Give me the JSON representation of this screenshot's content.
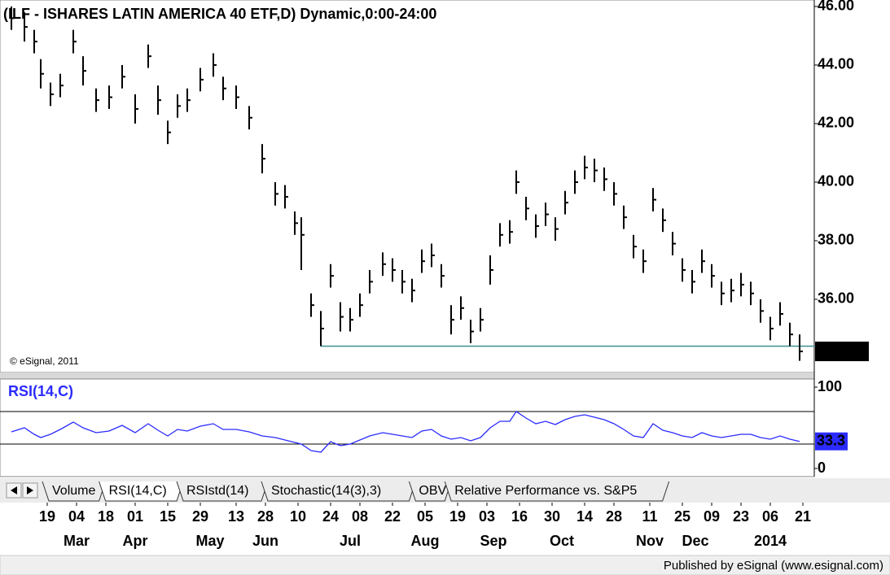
{
  "chart_data": [
    {
      "type": "ohlc",
      "title": "(ILF - ISHARES LATIN AMERICA 40 ETF,D) Dynamic,0:00-24:00",
      "copyright": "© eSignal, 2011",
      "color": "#000000",
      "x": [
        -11,
        -7,
        -4,
        -2,
        1,
        4,
        8,
        11,
        15,
        19,
        23,
        27,
        31,
        34,
        37,
        40,
        43,
        47,
        51,
        54,
        58,
        62,
        66,
        70,
        73,
        76,
        78,
        81,
        84,
        87,
        90,
        93,
        96,
        99,
        103,
        106,
        109,
        112,
        115,
        118,
        121,
        124,
        127,
        130,
        133,
        136,
        139,
        142,
        144,
        147,
        150,
        153,
        156,
        159,
        162,
        165,
        168,
        171,
        174,
        177,
        180,
        183,
        186,
        189,
        192,
        195,
        198,
        201,
        204,
        207,
        210,
        213,
        216,
        219,
        222,
        225,
        228,
        231
      ],
      "high": [
        46.0,
        45.8,
        45.2,
        44.2,
        43.4,
        43.7,
        45.2,
        44.3,
        43.2,
        43.3,
        44.0,
        43.0,
        44.7,
        43.3,
        42.1,
        43.0,
        43.2,
        43.9,
        44.4,
        43.6,
        43.3,
        42.6,
        41.3,
        40.0,
        39.9,
        39.0,
        38.8,
        36.2,
        35.6,
        37.2,
        35.9,
        35.7,
        36.2,
        37.0,
        37.6,
        37.4,
        37.0,
        36.7,
        37.7,
        37.9,
        37.2,
        35.8,
        36.1,
        35.3,
        35.7,
        37.5,
        38.6,
        38.7,
        40.4,
        39.5,
        38.9,
        39.3,
        38.8,
        39.7,
        40.4,
        40.9,
        40.8,
        40.5,
        40.0,
        39.2,
        38.2,
        37.7,
        39.8,
        39.1,
        38.3,
        37.4,
        37.0,
        37.7,
        37.2,
        36.6,
        36.7,
        36.9,
        36.6,
        36.0,
        35.4,
        35.9,
        35.2,
        34.8
      ],
      "low": [
        45.2,
        44.8,
        44.4,
        43.2,
        42.6,
        42.9,
        44.4,
        43.3,
        42.4,
        42.5,
        43.2,
        42.0,
        43.9,
        42.3,
        41.3,
        42.2,
        42.4,
        43.1,
        43.6,
        42.8,
        42.5,
        41.8,
        40.3,
        39.2,
        39.1,
        38.2,
        37.0,
        35.4,
        34.4,
        36.4,
        34.9,
        34.9,
        35.4,
        36.2,
        36.8,
        36.6,
        36.2,
        35.9,
        36.9,
        37.1,
        36.4,
        34.8,
        35.3,
        34.5,
        34.9,
        36.5,
        37.8,
        37.9,
        39.6,
        38.7,
        38.1,
        38.5,
        38.0,
        38.9,
        39.6,
        40.1,
        40.0,
        39.7,
        39.2,
        38.4,
        37.4,
        36.9,
        39.0,
        38.3,
        37.5,
        36.6,
        36.2,
        36.9,
        36.4,
        35.8,
        35.9,
        36.1,
        35.8,
        35.2,
        34.6,
        35.1,
        34.4,
        33.9
      ],
      "close": [
        45.6,
        45.3,
        44.8,
        43.7,
        43.0,
        43.3,
        44.8,
        43.8,
        42.8,
        42.9,
        43.6,
        42.5,
        44.3,
        42.8,
        41.7,
        42.6,
        42.8,
        43.5,
        44.0,
        43.2,
        42.9,
        42.2,
        40.8,
        39.6,
        39.5,
        38.6,
        38.2,
        35.8,
        35.0,
        36.8,
        35.4,
        35.3,
        35.8,
        36.6,
        37.2,
        37.0,
        36.6,
        36.3,
        37.3,
        37.5,
        36.8,
        35.3,
        35.7,
        34.9,
        35.3,
        37.0,
        38.2,
        38.3,
        40.0,
        39.1,
        38.5,
        38.9,
        38.4,
        39.3,
        40.0,
        40.5,
        40.4,
        40.1,
        39.6,
        38.8,
        37.8,
        37.3,
        39.4,
        38.7,
        37.9,
        37.0,
        36.6,
        37.3,
        36.8,
        36.2,
        36.3,
        36.5,
        36.2,
        35.6,
        35.0,
        35.5,
        34.8,
        34.22
      ],
      "support_line": {
        "from": 84,
        "value": 34.4,
        "color": "#3d8f8f"
      },
      "xlim": [
        -14.5,
        235.5
      ],
      "ylim": [
        33.5,
        46.22
      ],
      "yticks": [
        {
          "value": 36,
          "label": "36.00"
        },
        {
          "value": 38,
          "label": "38.00"
        },
        {
          "value": 40,
          "label": "40.00"
        },
        {
          "value": 42,
          "label": "42.00"
        },
        {
          "value": 44,
          "label": "44.00"
        },
        {
          "value": 46,
          "label": "46.00"
        }
      ],
      "xticks": [
        {
          "value": 0,
          "label": "19"
        },
        {
          "value": 9,
          "label": "04"
        },
        {
          "value": 18,
          "label": "18"
        },
        {
          "value": 27,
          "label": "01"
        },
        {
          "value": 37,
          "label": "15"
        },
        {
          "value": 47,
          "label": "29"
        },
        {
          "value": 58,
          "label": "13"
        },
        {
          "value": 67,
          "label": "28"
        },
        {
          "value": 77,
          "label": "10"
        },
        {
          "value": 87,
          "label": "24"
        },
        {
          "value": 96,
          "label": "08"
        },
        {
          "value": 106,
          "label": "22"
        },
        {
          "value": 116,
          "label": "05"
        },
        {
          "value": 126,
          "label": "19"
        },
        {
          "value": 135,
          "label": "03"
        },
        {
          "value": 145,
          "label": "16"
        },
        {
          "value": 155,
          "label": "30"
        },
        {
          "value": 165,
          "label": "14"
        },
        {
          "value": 174,
          "label": "28"
        },
        {
          "value": 185,
          "label": "11"
        },
        {
          "value": 195,
          "label": "25"
        },
        {
          "value": 204,
          "label": "09"
        },
        {
          "value": 213,
          "label": "23"
        },
        {
          "value": 222,
          "label": "06"
        },
        {
          "value": 232,
          "label": "21"
        }
      ],
      "month_labels": [
        {
          "value": 9,
          "label": "Mar"
        },
        {
          "value": 27,
          "label": "Apr"
        },
        {
          "value": 50,
          "label": "May"
        },
        {
          "value": 67,
          "label": "Jun"
        },
        {
          "value": 93,
          "label": "Jul"
        },
        {
          "value": 116,
          "label": "Aug"
        },
        {
          "value": 137,
          "label": "Sep"
        },
        {
          "value": 158,
          "label": "Oct"
        },
        {
          "value": 185,
          "label": "Nov"
        },
        {
          "value": 199,
          "label": "Dec"
        },
        {
          "value": 222,
          "label": "2014"
        }
      ]
    },
    {
      "type": "line",
      "title": "RSI(14,C)",
      "color": "#2b2bff",
      "x": [
        -11,
        -7,
        -4,
        -2,
        1,
        4,
        8,
        11,
        15,
        19,
        23,
        27,
        31,
        34,
        37,
        40,
        43,
        47,
        51,
        54,
        58,
        62,
        66,
        70,
        73,
        76,
        78,
        81,
        84,
        87,
        90,
        93,
        96,
        99,
        103,
        106,
        109,
        112,
        115,
        118,
        121,
        124,
        127,
        130,
        133,
        136,
        139,
        142,
        144,
        147,
        150,
        153,
        156,
        159,
        162,
        165,
        168,
        171,
        174,
        177,
        180,
        183,
        186,
        189,
        192,
        195,
        198,
        201,
        204,
        207,
        210,
        213,
        216,
        219,
        222,
        225,
        228,
        231
      ],
      "values": [
        45,
        50,
        42,
        38,
        42,
        48,
        57,
        50,
        44,
        46,
        53,
        44,
        55,
        47,
        40,
        48,
        46,
        52,
        55,
        48,
        48,
        45,
        40,
        38,
        35,
        32,
        30,
        22,
        20,
        33,
        28,
        30,
        35,
        40,
        44,
        42,
        40,
        38,
        46,
        48,
        40,
        36,
        38,
        34,
        38,
        50,
        58,
        58,
        70,
        62,
        55,
        58,
        54,
        60,
        64,
        66,
        63,
        60,
        55,
        48,
        40,
        38,
        55,
        47,
        44,
        40,
        38,
        44,
        40,
        38,
        40,
        42,
        42,
        38,
        36,
        40,
        36,
        33.3
      ],
      "levels": [
        30,
        70
      ],
      "xlim": [
        -14.5,
        235.5
      ],
      "ylim": [
        -10,
        110
      ],
      "yticks": [
        0,
        100
      ]
    }
  ],
  "tabs": [
    "Volume",
    "RSI(14,C)",
    "RSIstd(14)",
    "Stochastic(14(3),3)",
    "OBV",
    "Relative Performance vs. S&P5"
  ],
  "footer": "Published by eSignal (www.esignal.com)"
}
